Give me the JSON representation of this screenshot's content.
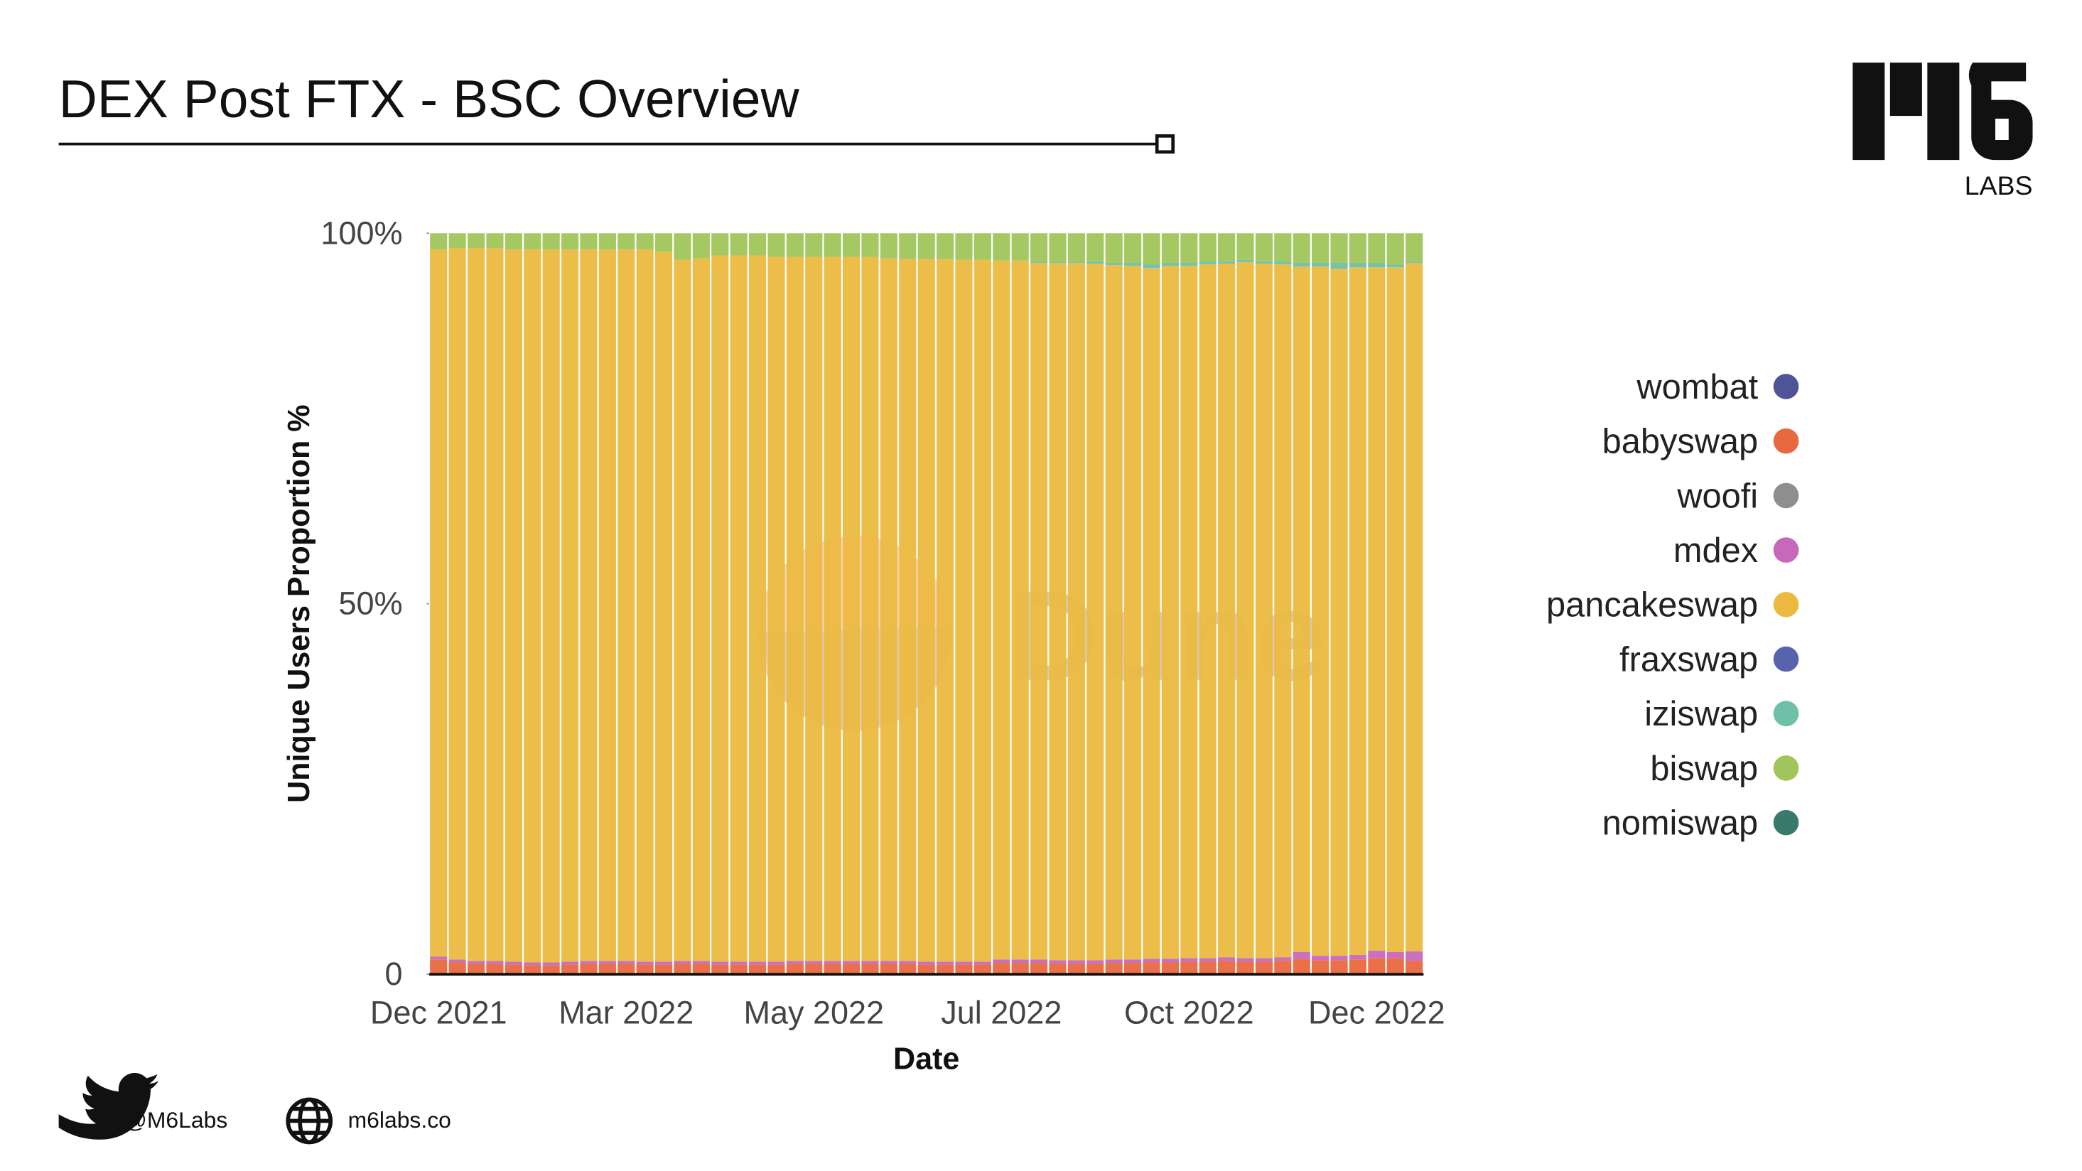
{
  "header": {
    "title": "DEX Post FTX - BSC Overview"
  },
  "logo": {
    "sub": "LABS"
  },
  "footer": {
    "twitter": "@M6Labs",
    "website": "m6labs.co"
  },
  "chart_data": {
    "type": "stacked-bar",
    "x_label": "Date",
    "y_label": "Unique Users Proportion %",
    "watermark": "Dune",
    "categories": [
      "Dec 2021",
      null,
      null,
      null,
      null,
      null,
      null,
      null,
      null,
      null,
      "Mar 2022",
      null,
      null,
      null,
      null,
      null,
      null,
      null,
      null,
      null,
      "May 2022",
      null,
      null,
      null,
      null,
      null,
      null,
      null,
      null,
      null,
      "Jul 2022",
      null,
      null,
      null,
      null,
      null,
      null,
      null,
      null,
      null,
      "Oct 2022",
      null,
      null,
      null,
      null,
      null,
      null,
      null,
      null,
      null,
      "Dec 2022",
      null,
      null
    ],
    "ylim": [
      0,
      100
    ],
    "yticks": [
      0,
      {
        "value": 50,
        "label": "50%"
      },
      {
        "value": 100,
        "label": "100%"
      }
    ],
    "series": [
      {
        "name": "wombat",
        "color": "#4f5495",
        "values": [
          0,
          0,
          0,
          0,
          0,
          0,
          0,
          0,
          0,
          0,
          0,
          0,
          0,
          0,
          0,
          0,
          0,
          0,
          0,
          0,
          0,
          0,
          0,
          0,
          0,
          0,
          0,
          0,
          0,
          0,
          0,
          0,
          0,
          0,
          0,
          0,
          0,
          0,
          0,
          0,
          0.1,
          0.1,
          0.1,
          0.1,
          0.1,
          0.1,
          0.1,
          0.1,
          0.1,
          0.1,
          0.1,
          0.1,
          0.1
        ]
      },
      {
        "name": "babyswap",
        "color": "#e8683f",
        "values": [
          2.0,
          1.6,
          1.4,
          1.4,
          1.3,
          1.2,
          1.2,
          1.3,
          1.4,
          1.4,
          1.4,
          1.3,
          1.3,
          1.4,
          1.4,
          1.3,
          1.3,
          1.3,
          1.3,
          1.4,
          1.4,
          1.4,
          1.4,
          1.4,
          1.4,
          1.4,
          1.3,
          1.3,
          1.3,
          1.3,
          1.5,
          1.5,
          1.5,
          1.4,
          1.4,
          1.4,
          1.5,
          1.5,
          1.6,
          1.6,
          1.6,
          1.6,
          1.7,
          1.6,
          1.6,
          1.7,
          2.0,
          1.8,
          1.8,
          1.9,
          2.1,
          2.1,
          1.7
        ]
      },
      {
        "name": "woofi",
        "color": "#8e8e8e",
        "values": [
          0,
          0,
          0,
          0,
          0,
          0,
          0,
          0,
          0,
          0,
          0,
          0,
          0,
          0,
          0,
          0,
          0,
          0,
          0,
          0,
          0,
          0,
          0,
          0,
          0,
          0,
          0,
          0,
          0,
          0,
          0,
          0,
          0,
          0,
          0,
          0,
          0,
          0,
          0,
          0,
          0,
          0,
          0,
          0,
          0,
          0,
          0,
          0,
          0,
          0,
          0,
          0,
          0
        ]
      },
      {
        "name": "mdex",
        "color": "#c868b8",
        "values": [
          0.4,
          0.4,
          0.4,
          0.4,
          0.4,
          0.4,
          0.4,
          0.4,
          0.4,
          0.4,
          0.4,
          0.4,
          0.4,
          0.4,
          0.4,
          0.4,
          0.4,
          0.4,
          0.4,
          0.4,
          0.4,
          0.4,
          0.4,
          0.4,
          0.4,
          0.4,
          0.4,
          0.4,
          0.4,
          0.4,
          0.5,
          0.5,
          0.5,
          0.5,
          0.5,
          0.5,
          0.5,
          0.5,
          0.5,
          0.5,
          0.5,
          0.5,
          0.5,
          0.5,
          0.5,
          0.5,
          0.9,
          0.6,
          0.6,
          0.6,
          1.0,
          0.8,
          1.3
        ]
      },
      {
        "name": "pancakeswap",
        "color": "#ecb940",
        "values": [
          95.4,
          96.0,
          96.2,
          96.2,
          96.1,
          96.2,
          96.2,
          96.1,
          96.0,
          96.0,
          96.0,
          96.1,
          95.8,
          94.6,
          94.8,
          95.3,
          95.3,
          95.3,
          95.1,
          95.0,
          95.0,
          95.0,
          95.0,
          95.0,
          94.8,
          94.7,
          94.8,
          94.8,
          94.7,
          94.7,
          94.3,
          94.3,
          94.0,
          94.1,
          94.1,
          94.0,
          93.7,
          93.6,
          93.2,
          93.5,
          93.4,
          93.6,
          93.6,
          93.9,
          93.7,
          93.5,
          92.5,
          93.0,
          92.7,
          92.8,
          92.2,
          92.4,
          92.9
        ]
      },
      {
        "name": "fraxswap",
        "color": "#5763ad",
        "values": [
          0,
          0,
          0,
          0,
          0,
          0,
          0,
          0,
          0,
          0,
          0,
          0,
          0,
          0,
          0,
          0,
          0,
          0,
          0,
          0,
          0,
          0,
          0,
          0,
          0,
          0,
          0,
          0,
          0,
          0,
          0,
          0,
          0,
          0,
          0,
          0,
          0,
          0,
          0,
          0,
          0,
          0,
          0,
          0,
          0,
          0,
          0,
          0,
          0,
          0,
          0,
          0,
          0
        ]
      },
      {
        "name": "iziswap",
        "color": "#6ec0a8",
        "values": [
          0,
          0,
          0,
          0,
          0,
          0,
          0,
          0,
          0,
          0,
          0,
          0,
          0,
          0,
          0,
          0,
          0,
          0,
          0,
          0,
          0,
          0,
          0,
          0,
          0,
          0,
          0,
          0,
          0,
          0,
          0,
          0,
          0.2,
          0.2,
          0.2,
          0.3,
          0.3,
          0.4,
          0.5,
          0.4,
          0.4,
          0.4,
          0.3,
          0.3,
          0.3,
          0.4,
          0.5,
          0.5,
          0.8,
          0.6,
          0.6,
          0.4,
          0.2
        ]
      },
      {
        "name": "biswap",
        "color": "#a0c55a",
        "values": [
          2.2,
          2.0,
          2.0,
          2.0,
          2.2,
          2.2,
          2.2,
          2.2,
          2.2,
          2.2,
          2.2,
          2.2,
          2.5,
          3.6,
          3.4,
          3.0,
          3.0,
          3.0,
          3.2,
          3.2,
          3.2,
          3.2,
          3.2,
          3.2,
          3.4,
          3.5,
          3.5,
          3.5,
          3.6,
          3.6,
          3.7,
          3.7,
          3.8,
          3.8,
          3.8,
          3.8,
          4.0,
          4.0,
          4.2,
          4.0,
          4.0,
          3.8,
          3.8,
          3.6,
          3.8,
          3.8,
          4.0,
          4.0,
          4.0,
          4.0,
          4.0,
          4.2,
          3.8
        ]
      },
      {
        "name": "nomiswap",
        "color": "#3a7a6a",
        "values": [
          0,
          0,
          0,
          0,
          0,
          0,
          0,
          0,
          0,
          0,
          0,
          0,
          0,
          0,
          0,
          0,
          0,
          0,
          0,
          0,
          0,
          0,
          0,
          0,
          0,
          0,
          0,
          0,
          0,
          0,
          0,
          0,
          0,
          0,
          0,
          0,
          0,
          0,
          0,
          0,
          0,
          0,
          0,
          0,
          0,
          0,
          0,
          0,
          0,
          0,
          0,
          0,
          0
        ]
      }
    ]
  }
}
